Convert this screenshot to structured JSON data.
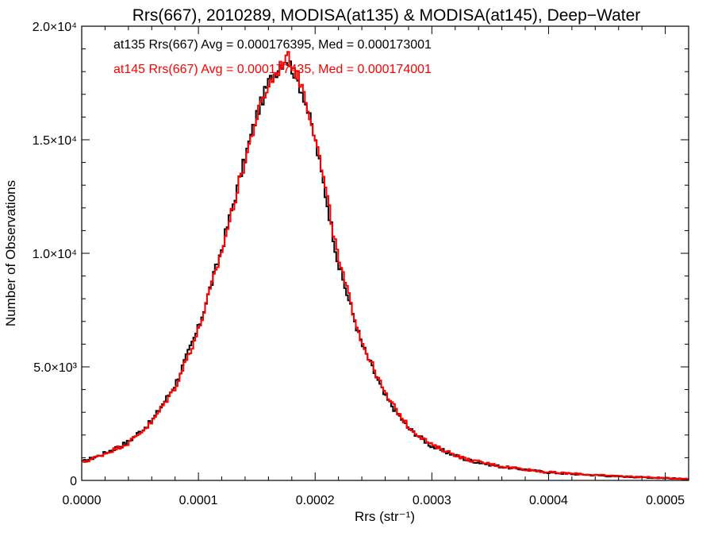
{
  "chart_data": {
    "type": "histogram",
    "title": "Rrs(667), 2010289, MODISA(at135) & MODISA(at145), Deep−Water",
    "xlabel": "Rrs (str⁻¹)",
    "ylabel": "Number of Observations",
    "xlim": [
      0.0,
      0.00052
    ],
    "ylim": [
      0,
      20000
    ],
    "grid": false,
    "legend_position": "top-left",
    "x_ticks": [
      {
        "value": 0.0,
        "label": "0.0000"
      },
      {
        "value": 0.0001,
        "label": "0.0001"
      },
      {
        "value": 0.0002,
        "label": "0.0002"
      },
      {
        "value": 0.0003,
        "label": "0.0003"
      },
      {
        "value": 0.0004,
        "label": "0.0004"
      },
      {
        "value": 0.0005,
        "label": "0.0005"
      }
    ],
    "y_ticks": [
      {
        "value": 0,
        "label": "0"
      },
      {
        "value": 5000,
        "label": "5.0×10³"
      },
      {
        "value": 10000,
        "label": "1.0×10⁴"
      },
      {
        "value": 15000,
        "label": "1.5×10⁴"
      },
      {
        "value": 20000,
        "label": "2.0×10⁴"
      }
    ],
    "x": [
      0.0,
      2e-05,
      4e-05,
      6e-05,
      8e-05,
      0.0001,
      0.00012,
      0.00014,
      0.00015,
      0.00016,
      0.00017,
      0.000175,
      0.00018,
      0.00019,
      0.0002,
      0.00021,
      0.00022,
      0.00024,
      0.00026,
      0.00028,
      0.0003,
      0.00033,
      0.00036,
      0.0004,
      0.00045,
      0.00052
    ],
    "series": [
      {
        "name": "at135",
        "color": "#000000",
        "legend": "at135 Rrs(667) Avg = 0.000176395, Med = 0.000173001",
        "values": [
          800,
          1200,
          1700,
          2600,
          4200,
          6700,
          10200,
          14200,
          16100,
          17500,
          18300,
          18600,
          18200,
          17000,
          15000,
          12300,
          9500,
          6000,
          3700,
          2300,
          1500,
          900,
          600,
          350,
          200,
          60
        ]
      },
      {
        "name": "at145",
        "color": "#ff0000",
        "legend": "at145 Rrs(667) Avg = 0.000177435, Med = 0.000174001",
        "values": [
          780,
          1180,
          1650,
          2550,
          4100,
          6600,
          10100,
          14100,
          16000,
          17400,
          18200,
          18700,
          18400,
          17200,
          15200,
          12500,
          9700,
          6100,
          3800,
          2350,
          1550,
          920,
          620,
          360,
          210,
          65
        ]
      }
    ]
  }
}
